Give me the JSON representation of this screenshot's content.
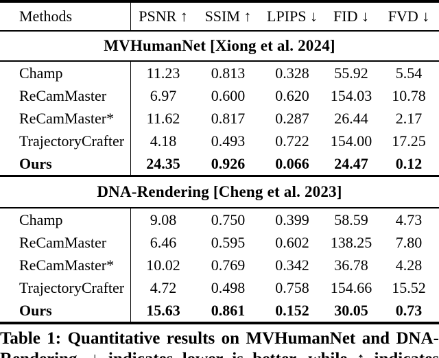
{
  "colors": {
    "text": "#000000",
    "background": "#ffffff",
    "rule": "#000000"
  },
  "header": {
    "methods_label": "Methods",
    "metrics": [
      "PSNR ↑",
      "SSIM ↑",
      "LPIPS ↓",
      "FID ↓",
      "FVD ↓"
    ]
  },
  "sections": [
    {
      "title": "MVHumanNet [Xiong et al. 2024]",
      "rows": [
        {
          "method": "Champ",
          "bold": false,
          "values": [
            "11.23",
            "0.813",
            "0.328",
            "55.92",
            "5.54"
          ]
        },
        {
          "method": "ReCamMaster",
          "bold": false,
          "values": [
            "6.97",
            "0.600",
            "0.620",
            "154.03",
            "10.78"
          ]
        },
        {
          "method": "ReCamMaster*",
          "bold": false,
          "values": [
            "11.62",
            "0.817",
            "0.287",
            "26.44",
            "2.17"
          ]
        },
        {
          "method": "TrajectoryCrafter",
          "bold": false,
          "values": [
            "4.18",
            "0.493",
            "0.722",
            "154.00",
            "17.25"
          ]
        },
        {
          "method": "Ours",
          "bold": true,
          "values": [
            "24.35",
            "0.926",
            "0.066",
            "24.47",
            "0.12"
          ]
        }
      ]
    },
    {
      "title": "DNA-Rendering [Cheng et al. 2023]",
      "rows": [
        {
          "method": "Champ",
          "bold": false,
          "values": [
            "9.08",
            "0.750",
            "0.399",
            "58.59",
            "4.73"
          ]
        },
        {
          "method": "ReCamMaster",
          "bold": false,
          "values": [
            "6.46",
            "0.595",
            "0.602",
            "138.25",
            "7.80"
          ]
        },
        {
          "method": "ReCamMaster*",
          "bold": false,
          "values": [
            "10.02",
            "0.769",
            "0.342",
            "36.78",
            "4.28"
          ]
        },
        {
          "method": "TrajectoryCrafter",
          "bold": false,
          "values": [
            "4.72",
            "0.498",
            "0.758",
            "154.66",
            "15.52"
          ]
        },
        {
          "method": "Ours",
          "bold": true,
          "values": [
            "15.63",
            "0.861",
            "0.152",
            "30.05",
            "0.73"
          ]
        }
      ]
    }
  ],
  "caption": {
    "line1": "Table 1: Quantitative results on MVHumanNet and DNA-",
    "line2": "Rendering. ↓ indicates lower is better, while ↑ indicates"
  }
}
